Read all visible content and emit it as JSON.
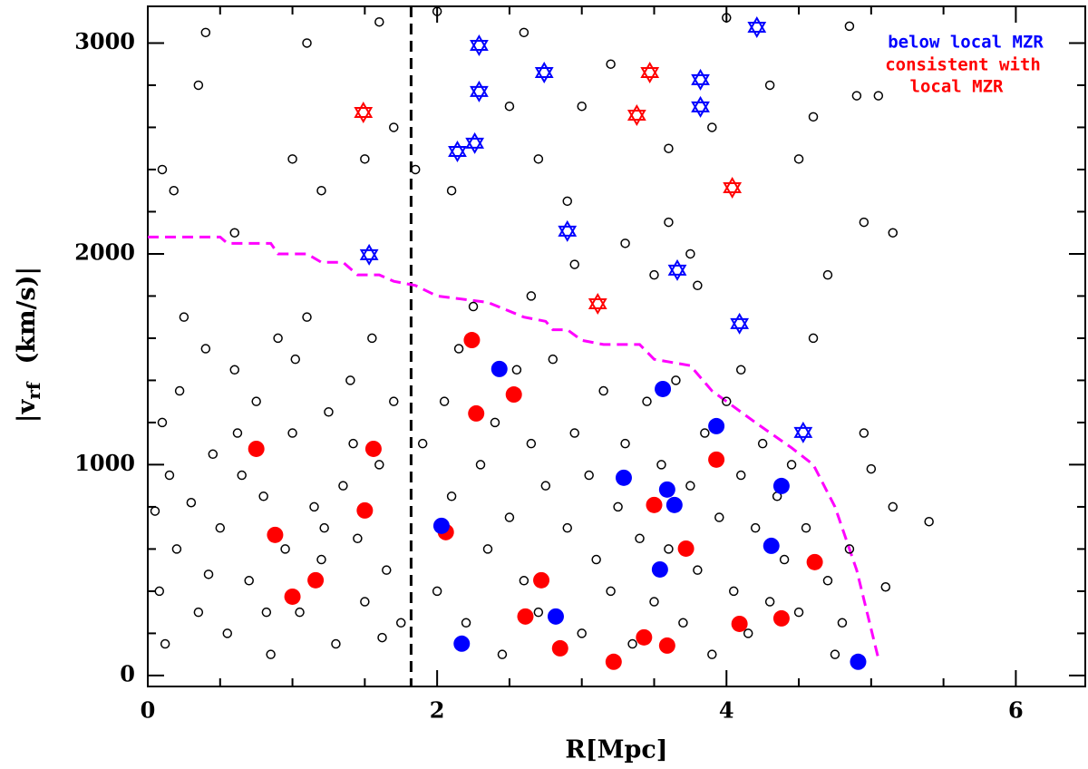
{
  "chart_data": {
    "type": "scatter",
    "xlabel": "R[Mpc]",
    "ylabel_parts": [
      "|v",
      "rf",
      "(km/s)|"
    ],
    "xlim": [
      0,
      6.48
    ],
    "ylim": [
      -52,
      3174
    ],
    "xticks": [
      0,
      2,
      4,
      6
    ],
    "yticks": [
      0,
      1000,
      2000,
      3000
    ],
    "xticks_minor": [
      0.5,
      1,
      1.5,
      2.5,
      3,
      3.5,
      4.5,
      5,
      5.5,
      6.5
    ],
    "yticks_minor": [
      200,
      400,
      600,
      800,
      1200,
      1400,
      1600,
      1800,
      2200,
      2400,
      2600,
      2800,
      3200
    ],
    "vline": {
      "x": 1.82,
      "color": "#000"
    },
    "curve": {
      "color": "#ff00ff",
      "x": [
        0,
        0.5,
        0.55,
        0.85,
        0.9,
        1.1,
        1.2,
        1.35,
        1.45,
        1.6,
        1.7,
        1.85,
        2.0,
        2.35,
        2.6,
        2.75,
        2.8,
        2.9,
        3.0,
        3.15,
        3.4,
        3.5,
        3.75,
        3.9,
        4.2,
        4.45,
        4.6,
        4.75,
        4.9,
        5.05
      ],
      "y": [
        2080,
        2080,
        2050,
        2050,
        2000,
        2000,
        1960,
        1960,
        1900,
        1900,
        1870,
        1850,
        1800,
        1770,
        1700,
        1680,
        1640,
        1640,
        1590,
        1570,
        1570,
        1500,
        1470,
        1350,
        1200,
        1080,
        1000,
        800,
        500,
        80
      ]
    },
    "legend": [
      {
        "text": "below local MZR",
        "color": "#0000ff"
      },
      {
        "text": "consistent with",
        "color": "#ff0000"
      },
      {
        "text": "local MZR",
        "color": "#ff0000"
      }
    ],
    "series": [
      {
        "marker": "open",
        "color": "#000",
        "x": [
          0.05,
          0.1,
          0.15,
          0.2,
          0.08,
          0.12,
          0.25,
          0.3,
          0.35,
          0.4,
          0.45,
          0.5,
          0.55,
          0.6,
          0.65,
          0.7,
          0.75,
          0.8,
          0.85,
          0.9,
          0.95,
          1.0,
          1.05,
          1.1,
          1.15,
          1.2,
          1.25,
          1.3,
          1.35,
          1.4,
          1.45,
          1.5,
          1.55,
          1.6,
          1.65,
          1.7,
          1.75,
          0.22,
          0.42,
          0.62,
          0.82,
          1.02,
          1.22,
          1.42,
          1.62,
          0.18,
          0.35,
          0.4,
          1.1,
          1.2,
          0.6,
          1.0,
          0.1,
          1.5,
          1.7,
          1.85,
          1.6,
          1.9,
          2.0,
          2.05,
          2.1,
          2.15,
          2.2,
          2.3,
          2.35,
          2.4,
          2.45,
          2.5,
          2.55,
          2.6,
          2.65,
          2.7,
          2.75,
          2.8,
          2.9,
          2.95,
          3.0,
          3.05,
          3.1,
          3.15,
          3.2,
          3.25,
          3.3,
          3.35,
          3.4,
          3.45,
          3.5,
          3.55,
          3.6,
          3.65,
          3.7,
          3.75,
          3.8,
          3.85,
          3.9,
          3.95,
          4.0,
          4.05,
          4.1,
          4.15,
          4.2,
          4.25,
          4.3,
          4.35,
          4.4,
          4.45,
          4.5,
          4.55,
          4.7,
          4.8,
          4.85,
          4.75,
          5.0,
          5.15,
          5.1,
          5.4,
          4.95,
          2.1,
          2.5,
          2.9,
          3.2,
          3.6,
          3.9,
          4.3,
          4.6,
          4.9,
          5.05,
          4.95,
          5.15,
          3.3,
          3.5,
          3.8,
          2.95,
          2.7,
          4.7,
          4.1,
          3.75,
          2.6,
          3.0,
          4.0,
          4.5,
          4.85,
          2.0,
          3.6,
          4.6,
          2.25,
          2.65
        ],
        "y": [
          780,
          1200,
          950,
          600,
          400,
          150,
          1700,
          820,
          300,
          1550,
          1050,
          700,
          200,
          1450,
          950,
          450,
          1300,
          850,
          100,
          1600,
          600,
          1150,
          300,
          1700,
          800,
          550,
          1250,
          150,
          900,
          1400,
          650,
          350,
          1600,
          1000,
          500,
          1300,
          250,
          1350,
          480,
          1150,
          300,
          1500,
          700,
          1100,
          180,
          2300,
          2800,
          3050,
          3000,
          2300,
          2100,
          2450,
          2400,
          2450,
          2600,
          2400,
          3100,
          1100,
          400,
          1300,
          850,
          1550,
          250,
          1000,
          600,
          1200,
          100,
          750,
          1450,
          450,
          1100,
          300,
          900,
          1500,
          700,
          1150,
          200,
          950,
          550,
          1350,
          400,
          800,
          1100,
          150,
          650,
          1300,
          350,
          1000,
          600,
          1400,
          250,
          900,
          500,
          1150,
          100,
          750,
          1300,
          400,
          950,
          200,
          700,
          1100,
          350,
          850,
          550,
          1000,
          300,
          700,
          450,
          250,
          600,
          100,
          980,
          800,
          420,
          730,
          1150,
          2300,
          2700,
          2250,
          2900,
          2500,
          2600,
          2800,
          2650,
          2750,
          2750,
          2150,
          2100,
          2050,
          1900,
          1850,
          1950,
          2450,
          1900,
          1450,
          2000,
          3050,
          2700,
          3120,
          2450,
          3080,
          3150,
          2150,
          1600,
          1750,
          1800
        ]
      },
      {
        "marker": "filled",
        "color": "#ff0000",
        "x": [
          0.75,
          1.56,
          1.5,
          0.88,
          1.16,
          1.0,
          2.06,
          2.24,
          2.27,
          2.53,
          2.61,
          2.72,
          2.85,
          3.22,
          3.43,
          3.59,
          3.5,
          3.72,
          3.93,
          4.09,
          4.38,
          4.61
        ],
        "y": [
          1075,
          1075,
          783,
          667,
          452,
          374,
          680,
          1591,
          1243,
          1333,
          280,
          452,
          129,
          65,
          181,
          142,
          809,
          602,
          1024,
          245,
          271,
          538
        ]
      },
      {
        "marker": "filled",
        "color": "#0000ff",
        "x": [
          2.43,
          3.56,
          3.93,
          3.29,
          3.59,
          3.64,
          4.38,
          2.03,
          4.31,
          3.54,
          2.82,
          2.17,
          4.91
        ],
        "y": [
          1454,
          1359,
          1183,
          938,
          882,
          809,
          899,
          710,
          615,
          503,
          280,
          151,
          65
        ]
      },
      {
        "marker": "star",
        "color": "#ff0000",
        "x": [
          1.49,
          3.47,
          3.38,
          4.04,
          3.11
        ],
        "y": [
          2671,
          2860,
          2658,
          2314,
          1763
        ]
      },
      {
        "marker": "star",
        "color": "#0000ff",
        "x": [
          2.29,
          2.74,
          2.29,
          2.14,
          2.26,
          4.21,
          3.82,
          3.82,
          2.9,
          1.53,
          3.66,
          4.09,
          4.53
        ],
        "y": [
          2989,
          2860,
          2770,
          2486,
          2525,
          3075,
          2826,
          2697,
          2108,
          1996,
          1923,
          1669,
          1153
        ]
      }
    ]
  }
}
